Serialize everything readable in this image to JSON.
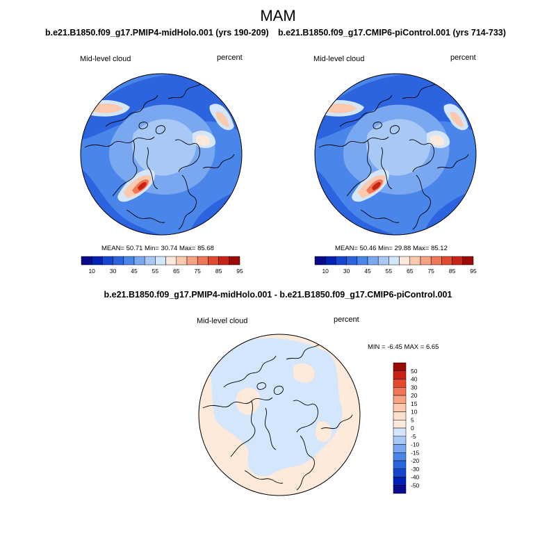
{
  "season": "MAM",
  "panels": [
    {
      "case": "b.e21.B1850.f09_g17.PMIP4-midHolo.001 (yrs 190-209)",
      "variable": "Mid-level cloud",
      "units": "percent",
      "stats": "MEAN=  50.71  Min=  30.74  Max=  85.68"
    },
    {
      "case": "b.e21.B1850.f09_g17.CMIP6-piControl.001 (yrs 714-733)",
      "variable": "Mid-level cloud",
      "units": "percent",
      "stats": "MEAN=  50.46  Min=  29.88  Max=  85.12"
    }
  ],
  "diff": {
    "title": "b.e21.B1850.f09_g17.PMIP4-midHolo.001 - b.e21.B1850.f09_g17.CMIP6-piControl.001",
    "variable": "Mid-level cloud",
    "units": "percent",
    "stats": "MIN =  -6.45 MAX =   6.65"
  },
  "colorbar_abs": {
    "labels": [
      "10",
      "30",
      "45",
      "55",
      "65",
      "75",
      "85",
      "95"
    ],
    "colors": [
      "#0a0a8c",
      "#0022b4",
      "#1546d0",
      "#2c64e0",
      "#4a85ea",
      "#7aa8f0",
      "#a8c8f6",
      "#d4e6fb",
      "#fdeadb",
      "#fbc9ad",
      "#f6a283",
      "#ef7657",
      "#e14a2f",
      "#c82415",
      "#9c0a05"
    ]
  },
  "colorbar_diff": {
    "labels": [
      "50",
      "40",
      "30",
      "20",
      "15",
      "10",
      "5",
      "0",
      "-5",
      "-10",
      "-15",
      "-20",
      "-30",
      "-40",
      "-50"
    ],
    "colors": [
      "#9c0a05",
      "#c82415",
      "#e14a2f",
      "#ef7657",
      "#f6a283",
      "#fbc9ad",
      "#fde0cc",
      "#fdeadb",
      "#d4e6fb",
      "#a8c8f6",
      "#7aa8f0",
      "#4a85ea",
      "#2c64e0",
      "#1546d0",
      "#0022b4",
      "#0a0a8c"
    ]
  }
}
